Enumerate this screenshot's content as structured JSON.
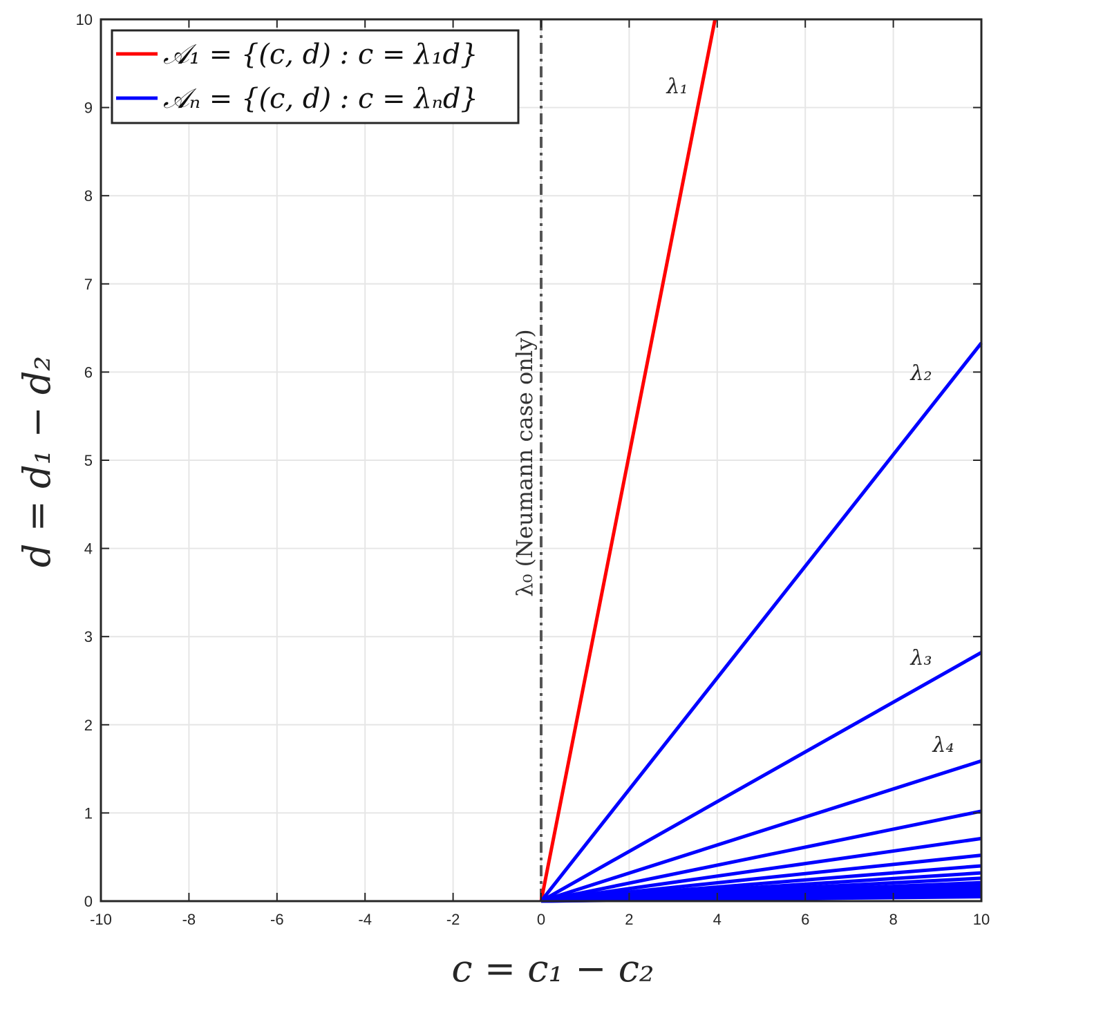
{
  "chart_data": {
    "type": "line",
    "xlim": [
      -10,
      10
    ],
    "ylim": [
      0,
      10
    ],
    "xticks": [
      -10,
      -8,
      -6,
      -4,
      -2,
      0,
      2,
      4,
      6,
      8,
      10
    ],
    "yticks": [
      0,
      1,
      2,
      3,
      4,
      5,
      6,
      7,
      8,
      9,
      10
    ],
    "grid": true,
    "legend_position": "top-left",
    "xlabel": "c = c₁ − c₂",
    "ylabel": "d = d₁ − d₂",
    "legend": [
      {
        "label": "𝒜₁ = {(c, d) : c = λ₁d}",
        "color": "#ff0000"
      },
      {
        "label": "𝒜ₙ = {(c, d) : c = λₙd}",
        "color": "#0000ff"
      }
    ],
    "vertical_line": {
      "x": 0,
      "label": "λ₀ (Neumann case only)",
      "color": "#555555"
    },
    "series": [
      {
        "label": "λ₁",
        "color": "#ff0000",
        "x": [
          0,
          3.95
        ],
        "y": [
          0,
          10
        ]
      },
      {
        "label": "λ₂",
        "color": "#0000ff",
        "x": [
          0,
          10
        ],
        "y": [
          0,
          6.33
        ]
      },
      {
        "label": "λ₃",
        "color": "#0000ff",
        "x": [
          0,
          10
        ],
        "y": [
          0,
          2.82
        ]
      },
      {
        "label": "λ₄",
        "color": "#0000ff",
        "x": [
          0,
          10
        ],
        "y": [
          0,
          1.59
        ]
      },
      {
        "color": "#0000ff",
        "x": [
          0,
          10
        ],
        "y": [
          0,
          1.02
        ]
      },
      {
        "color": "#0000ff",
        "x": [
          0,
          10
        ],
        "y": [
          0,
          0.71
        ]
      },
      {
        "color": "#0000ff",
        "x": [
          0,
          10
        ],
        "y": [
          0,
          0.52
        ]
      },
      {
        "color": "#0000ff",
        "x": [
          0,
          10
        ],
        "y": [
          0,
          0.4
        ]
      },
      {
        "color": "#0000ff",
        "x": [
          0,
          10
        ],
        "y": [
          0,
          0.32
        ]
      },
      {
        "color": "#0000ff",
        "x": [
          0,
          10
        ],
        "y": [
          0,
          0.26
        ]
      },
      {
        "color": "#0000ff",
        "x": [
          0,
          10
        ],
        "y": [
          0,
          0.21
        ]
      },
      {
        "color": "#0000ff",
        "x": [
          0,
          10
        ],
        "y": [
          0,
          0.18
        ]
      },
      {
        "color": "#0000ff",
        "x": [
          0,
          10
        ],
        "y": [
          0,
          0.15
        ]
      },
      {
        "color": "#0000ff",
        "x": [
          0,
          10
        ],
        "y": [
          0,
          0.13
        ]
      },
      {
        "color": "#0000ff",
        "x": [
          0,
          10
        ],
        "y": [
          0,
          0.11
        ]
      },
      {
        "color": "#0000ff",
        "x": [
          0,
          10
        ],
        "y": [
          0,
          0.09
        ]
      },
      {
        "color": "#0000ff",
        "x": [
          0,
          10
        ],
        "y": [
          0,
          0.07
        ]
      },
      {
        "color": "#0000ff",
        "x": [
          0,
          10
        ],
        "y": [
          0,
          0.05
        ]
      }
    ]
  }
}
